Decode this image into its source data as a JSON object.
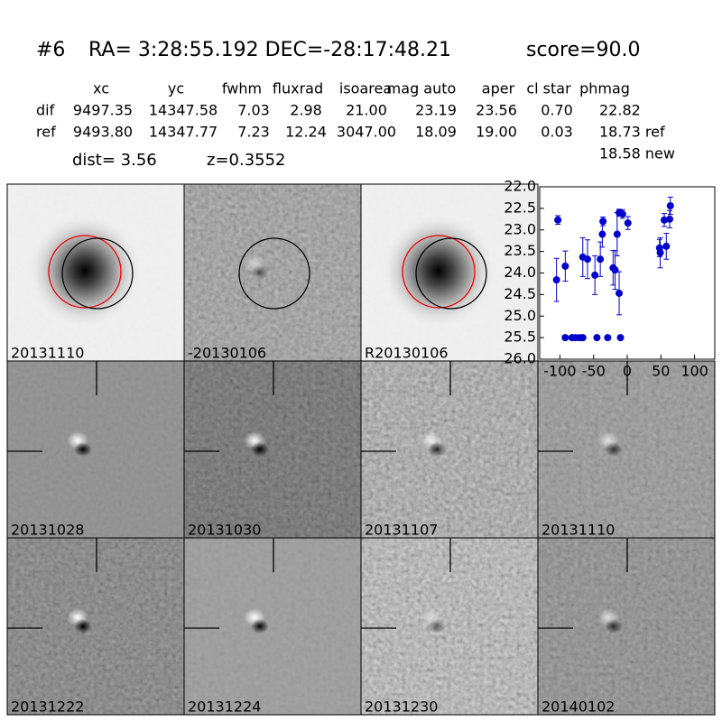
{
  "header": {
    "id": "#6",
    "coords": "RA= 3:28:55.192 DEC=-28:17:48.21",
    "score": "score=90.0"
  },
  "table": {
    "columns": [
      "xc",
      "yc",
      "fwhm",
      "fluxrad",
      "isoarea",
      "mag auto",
      "aper",
      "cl star",
      "phmag"
    ],
    "rows": [
      {
        "label": "dif",
        "cells": [
          "9497.35",
          "14347.58",
          "7.03",
          "2.98",
          "21.00",
          "23.19",
          "23.56",
          "0.70",
          "22.82"
        ]
      },
      {
        "label": "ref",
        "cells": [
          "9493.80",
          "14347.77",
          "7.23",
          "12.24",
          "3047.00",
          "18.09",
          "19.00",
          "0.03",
          "18.73 ref"
        ]
      }
    ],
    "extra": "18.58 new"
  },
  "dist": "dist=  3.56",
  "z": "z=0.3552",
  "panels": [
    {
      "label": "20131110"
    },
    {
      "label": "-20130106"
    },
    {
      "label": "R20130106"
    },
    {
      "label": "20131028"
    },
    {
      "label": "20131030"
    },
    {
      "label": "20131107"
    },
    {
      "label": "20131110",
      "color": "#ff0000"
    },
    {
      "label": "20131222"
    },
    {
      "label": "20131224"
    },
    {
      "label": "20131230"
    },
    {
      "label": "20140102"
    }
  ],
  "chart_data": {
    "type": "scatter",
    "color": "#0000cc",
    "invert_y": true,
    "xlim": [
      -130,
      130
    ],
    "ylim": [
      22,
      26
    ],
    "xticks": [
      -100,
      -50,
      0,
      50,
      100
    ],
    "yticks": [
      {
        "value": 22,
        "label": "22.0"
      },
      {
        "value": 22.5,
        "label": "22.5"
      },
      {
        "value": 23,
        "label": "23.0"
      },
      {
        "value": 23.5,
        "label": "23.5"
      },
      {
        "value": 24,
        "label": "24.0"
      },
      {
        "value": 24.5,
        "label": "24.5"
      },
      {
        "value": 25,
        "label": "25.0"
      },
      {
        "value": 25.5,
        "label": "25.5"
      },
      {
        "value": 26,
        "label": "26.0"
      }
    ],
    "series": [
      {
        "x": [
          -103,
          -105,
          -92,
          -92,
          -82,
          -77,
          -71,
          -66,
          -66,
          -59,
          -48,
          -45,
          -40,
          -37,
          -36,
          -29,
          -21,
          -18,
          -15,
          -12,
          -12,
          -10,
          -7,
          1,
          48,
          49,
          55,
          58,
          63,
          64
        ],
        "values": [
          22.77,
          24.16,
          23.84,
          25.5,
          25.5,
          25.5,
          25.5,
          25.5,
          23.63,
          23.68,
          24.05,
          25.5,
          23.68,
          23.1,
          22.8,
          25.5,
          23.88,
          23.93,
          23.1,
          24.47,
          22.6,
          25.5,
          22.63,
          22.84,
          23.42,
          23.53,
          22.77,
          23.38,
          22.75,
          22.44
        ],
        "errors": [
          0.1,
          0.5,
          0.35,
          null,
          null,
          null,
          null,
          null,
          0.45,
          0.45,
          0.45,
          null,
          0.4,
          0.3,
          0.1,
          null,
          0.4,
          0.45,
          0.5,
          0.5,
          0.08,
          null,
          0.1,
          0.15,
          0.2,
          0.35,
          0.15,
          0.3,
          0.2,
          0.2
        ]
      }
    ]
  }
}
